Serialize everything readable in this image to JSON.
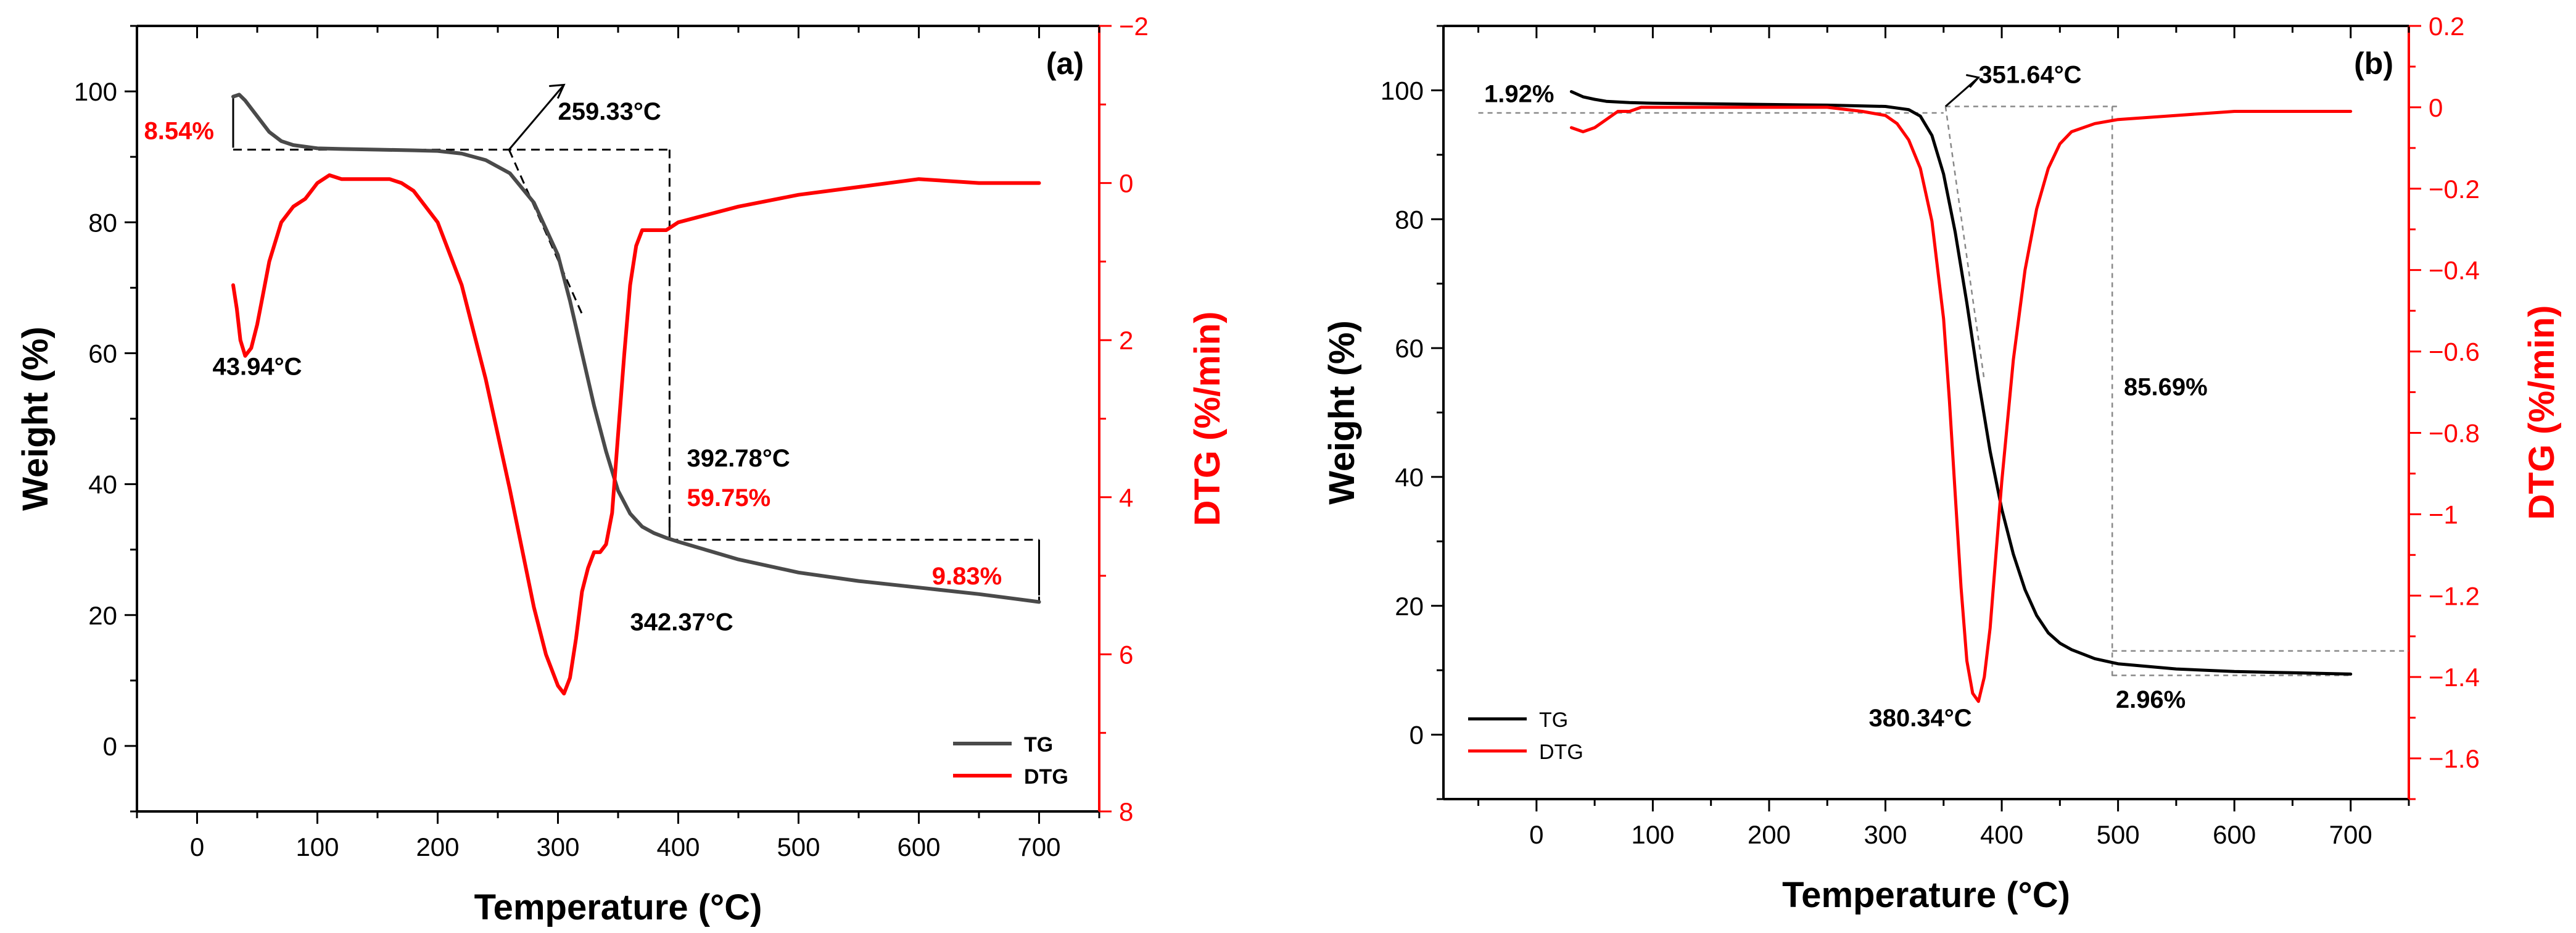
{
  "colors": {
    "tg_a": "#4a4a4a",
    "tg_b": "#000000",
    "dtg": "#ff0000",
    "annotation_red": "#ff0000",
    "text": "#000000"
  },
  "chart_data": [
    {
      "type": "line",
      "panel_label": "(a)",
      "xlabel": "Temperature (°C)",
      "ylabel": "Weight (%)",
      "y2label": "DTG (%/min)",
      "xlim": [
        -50,
        750
      ],
      "ylim": [
        -10,
        110
      ],
      "y2lim": [
        8,
        -2
      ],
      "xticks": [
        0,
        100,
        200,
        300,
        400,
        500,
        600,
        700
      ],
      "yticks": [
        0,
        20,
        40,
        60,
        80,
        100
      ],
      "y2ticks": [
        -2,
        0,
        2,
        4,
        6,
        8
      ],
      "xtick_labels": [
        "0",
        "100",
        "200",
        "300",
        "400",
        "500",
        "600",
        "700"
      ],
      "ytick_labels": [
        "0",
        "20",
        "40",
        "60",
        "80",
        "100"
      ],
      "y2tick_labels": [
        "−2",
        "0",
        "2",
        "4",
        "6",
        "8"
      ],
      "series": [
        {
          "name": "TG",
          "axis": "left",
          "x": [
            30,
            35,
            40,
            50,
            60,
            70,
            80,
            100,
            120,
            150,
            180,
            200,
            220,
            240,
            260,
            280,
            300,
            310,
            320,
            330,
            340,
            350,
            360,
            370,
            380,
            390,
            400,
            450,
            500,
            550,
            600,
            650,
            700
          ],
          "y": [
            99.2,
            99.5,
            98.6,
            96.2,
            93.8,
            92.4,
            91.8,
            91.3,
            91.2,
            91.1,
            91.0,
            90.9,
            90.5,
            89.5,
            87.5,
            83.0,
            75.0,
            68.0,
            60.0,
            52.0,
            45.0,
            39.0,
            35.5,
            33.5,
            32.5,
            31.8,
            31.2,
            28.5,
            26.5,
            25.2,
            24.2,
            23.2,
            22.0
          ]
        },
        {
          "name": "DTG",
          "axis": "right",
          "x": [
            30,
            33,
            36,
            40,
            45,
            50,
            55,
            60,
            70,
            80,
            90,
            100,
            110,
            120,
            130,
            140,
            150,
            160,
            170,
            180,
            200,
            220,
            240,
            260,
            280,
            290,
            300,
            305,
            310,
            315,
            320,
            325,
            330,
            335,
            340,
            345,
            350,
            355,
            360,
            365,
            370,
            380,
            390,
            400,
            450,
            500,
            550,
            600,
            650,
            700
          ],
          "y": [
            1.3,
            1.6,
            2.0,
            2.2,
            2.1,
            1.8,
            1.4,
            1.0,
            0.5,
            0.3,
            0.2,
            0.0,
            -0.1,
            -0.05,
            -0.05,
            -0.05,
            -0.05,
            -0.05,
            -0.0,
            0.1,
            0.5,
            1.3,
            2.5,
            3.9,
            5.4,
            6.0,
            6.4,
            6.5,
            6.3,
            5.8,
            5.2,
            4.9,
            4.7,
            4.7,
            4.6,
            4.2,
            3.2,
            2.2,
            1.3,
            0.8,
            0.6,
            0.6,
            0.6,
            0.5,
            0.3,
            0.15,
            0.05,
            -0.05,
            0.0,
            0.0
          ]
        }
      ],
      "legend": {
        "position": "bottom-right",
        "entries": [
          {
            "label": "TG",
            "series": "TG"
          },
          {
            "label": "DTG",
            "series": "DTG"
          }
        ]
      },
      "annotations": [
        {
          "text": "259.33°C",
          "x": 300,
          "y": 97,
          "color": "black"
        },
        {
          "text": "8.54%",
          "x": -15,
          "y": 94,
          "color": "red"
        },
        {
          "text": "43.94°C",
          "x": 50,
          "y": 58,
          "color": "black"
        },
        {
          "text": "392.78°C",
          "x": 400,
          "y": 44,
          "color": "black"
        },
        {
          "text": "59.75%",
          "x": 400,
          "y": 38,
          "color": "red"
        },
        {
          "text": "9.83%",
          "x": 640,
          "y": 26,
          "color": "red"
        },
        {
          "text": "342.37°C",
          "x": 360,
          "y": 19,
          "color": "black"
        }
      ]
    },
    {
      "type": "line",
      "panel_label": "(b)",
      "xlabel": "Temperature (°C)",
      "ylabel": "Weight (%)",
      "y2label": "DTG (%/min)",
      "xlim": [
        -80,
        750
      ],
      "ylim": [
        -10,
        110
      ],
      "y2lim": [
        -1.7,
        0.2
      ],
      "xticks": [
        0,
        100,
        200,
        300,
        400,
        500,
        600,
        700
      ],
      "yticks": [
        0,
        20,
        40,
        60,
        80,
        100
      ],
      "y2ticks": [
        0.2,
        0,
        -0.2,
        -0.4,
        -0.6,
        -0.8,
        -1,
        -1.2,
        -1.4,
        -1.6
      ],
      "xtick_labels": [
        "0",
        "100",
        "200",
        "300",
        "400",
        "500",
        "600",
        "700"
      ],
      "ytick_labels": [
        "0",
        "20",
        "40",
        "60",
        "80",
        "100"
      ],
      "y2tick_labels": [
        "0.2",
        "0",
        "−0.2",
        "−0.4",
        "−0.6",
        "−0.8",
        "−1",
        "−1.2",
        "−1.4",
        "−1.6"
      ],
      "series": [
        {
          "name": "TG",
          "axis": "left",
          "x": [
            30,
            40,
            50,
            60,
            80,
            100,
            150,
            200,
            250,
            300,
            320,
            330,
            340,
            350,
            360,
            370,
            380,
            390,
            400,
            410,
            420,
            430,
            440,
            450,
            460,
            480,
            500,
            550,
            600,
            650,
            700
          ],
          "y": [
            99.8,
            99.0,
            98.6,
            98.3,
            98.1,
            98.0,
            97.9,
            97.8,
            97.7,
            97.5,
            97.0,
            96.0,
            93.0,
            87.0,
            78.0,
            67.0,
            55.0,
            44.0,
            35.0,
            28.0,
            22.5,
            18.5,
            15.8,
            14.2,
            13.2,
            11.8,
            11.0,
            10.2,
            9.8,
            9.6,
            9.4
          ]
        },
        {
          "name": "DTG",
          "axis": "right",
          "x": [
            30,
            40,
            50,
            60,
            70,
            80,
            90,
            100,
            150,
            200,
            250,
            280,
            300,
            310,
            320,
            330,
            340,
            350,
            355,
            360,
            365,
            370,
            375,
            380,
            385,
            390,
            395,
            400,
            410,
            420,
            430,
            440,
            450,
            460,
            480,
            500,
            550,
            600,
            650,
            700
          ],
          "y": [
            -0.05,
            -0.06,
            -0.05,
            -0.03,
            -0.01,
            -0.01,
            0.0,
            0.0,
            0.0,
            0.0,
            0.0,
            -0.01,
            -0.02,
            -0.04,
            -0.08,
            -0.15,
            -0.28,
            -0.52,
            -0.72,
            -0.95,
            -1.18,
            -1.36,
            -1.44,
            -1.46,
            -1.4,
            -1.28,
            -1.1,
            -0.92,
            -0.62,
            -0.4,
            -0.25,
            -0.15,
            -0.09,
            -0.06,
            -0.04,
            -0.03,
            -0.02,
            -0.01,
            -0.01,
            -0.01
          ]
        }
      ],
      "legend": {
        "position": "bottom-left",
        "entries": [
          {
            "label": "TG",
            "series": "TG"
          },
          {
            "label": "DTG",
            "series": "DTG"
          }
        ]
      },
      "annotations": [
        {
          "text": "1.92%",
          "x": -45,
          "y": 99.5,
          "color": "black"
        },
        {
          "text": "351.64°C",
          "x": 380,
          "y": 102.5,
          "color": "black"
        },
        {
          "text": "85.69%",
          "x": 505,
          "y": 54,
          "color": "black"
        },
        {
          "text": "380.34°C",
          "x": 330,
          "y": -1.0,
          "color": "black"
        },
        {
          "text": "2.96%",
          "x": 498,
          "y": 5.5,
          "color": "black"
        }
      ]
    }
  ]
}
